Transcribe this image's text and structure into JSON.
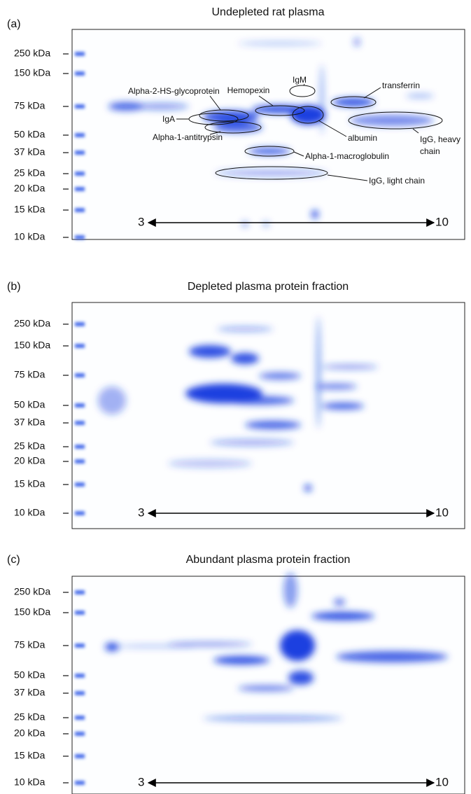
{
  "panels": [
    {
      "label": "(a)",
      "title": "Undepleted rat plasma",
      "mw_markers": [
        "250 kDa",
        "150 kDa",
        "75 kDa",
        "50 kDa",
        "37 kDa",
        "25 kDa",
        "20 kDa",
        "15 kDa",
        "10 kDa"
      ],
      "ph_start": "3",
      "ph_end": "10",
      "annotations": [
        "Hemopexin",
        "IgM",
        "transferrin",
        "Alpha-2-HS-glycoprotein",
        "IgA",
        "Alpha-1-antitrypsin",
        "albumin",
        "IgG, heavy chain",
        "Alpha-1-macroglobulin",
        "IgG, light chain"
      ]
    },
    {
      "label": "(b)",
      "title": "Depleted plasma protein fraction",
      "mw_markers": [
        "250 kDa",
        "150 kDa",
        "75 kDa",
        "50 kDa",
        "37 kDa",
        "25 kDa",
        "20 kDa",
        "15 kDa",
        "10 kDa"
      ],
      "ph_start": "3",
      "ph_end": "10"
    },
    {
      "label": "(c)",
      "title": "Abundant plasma protein fraction",
      "mw_markers": [
        "250 kDa",
        "150 kDa",
        "75 kDa",
        "50 kDa",
        "37 kDa",
        "25 kDa",
        "20 kDa",
        "15 kDa",
        "10 kDa"
      ],
      "ph_start": "3",
      "ph_end": "10"
    }
  ]
}
